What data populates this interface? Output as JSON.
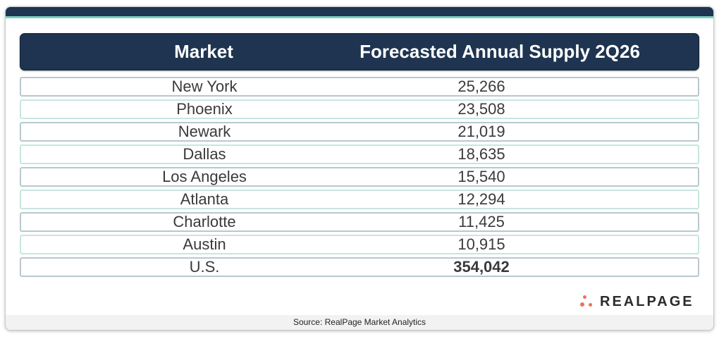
{
  "table": {
    "headers": {
      "market": "Market",
      "supply": "Forecasted Annual Supply 2Q26"
    },
    "rows": [
      {
        "market": "New York",
        "value": "25,266"
      },
      {
        "market": "Phoenix",
        "value": "23,508"
      },
      {
        "market": "Newark",
        "value": "21,019"
      },
      {
        "market": "Dallas",
        "value": "18,635"
      },
      {
        "market": "Los Angeles",
        "value": "15,540"
      },
      {
        "market": "Atlanta",
        "value": "12,294"
      },
      {
        "market": "Charlotte",
        "value": "11,425"
      },
      {
        "market": "Austin",
        "value": "10,915"
      },
      {
        "market": "U.S.",
        "value": "354,042"
      }
    ]
  },
  "logo": {
    "text": "REALPAGE",
    "icon": "realpage-dots-icon",
    "color": "#e8735a"
  },
  "footer": {
    "source": "Source: RealPage Market Analytics"
  },
  "colors": {
    "header_bg": "#1e3450",
    "accent_teal": "#7fd0c2"
  }
}
